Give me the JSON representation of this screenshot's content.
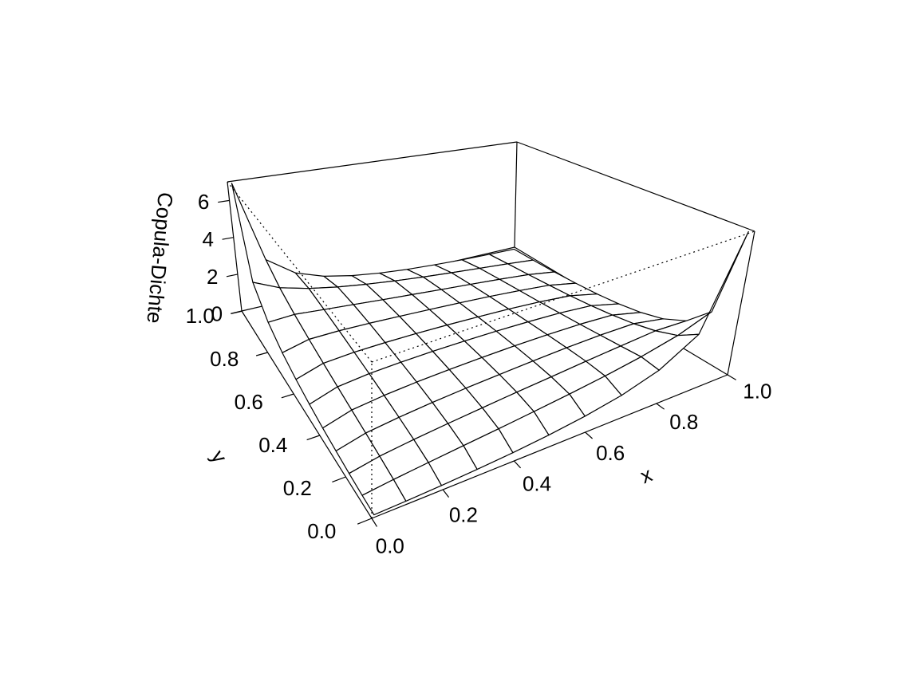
{
  "chart_data": {
    "type": "surface",
    "x": [
      0.01,
      0.1,
      0.2,
      0.3,
      0.4,
      0.5,
      0.6,
      0.7,
      0.8,
      0.9,
      0.99
    ],
    "y": [
      0.01,
      0.1,
      0.2,
      0.3,
      0.4,
      0.5,
      0.6,
      0.7,
      0.8,
      0.9,
      0.99
    ],
    "z": [
      [
        0.01,
        0.05,
        0.11,
        0.2,
        0.31,
        0.47,
        0.69,
        1.01,
        1.54,
        2.6,
        7.01
      ],
      [
        0.05,
        0.22,
        0.38,
        0.54,
        0.7,
        0.88,
        1.08,
        1.31,
        1.6,
        2.0,
        2.6
      ],
      [
        0.11,
        0.38,
        0.57,
        0.73,
        0.88,
        1.03,
        1.17,
        1.32,
        1.46,
        1.6,
        1.54
      ],
      [
        0.2,
        0.54,
        0.73,
        0.88,
        1.0,
        1.1,
        1.19,
        1.27,
        1.32,
        1.31,
        1.01
      ],
      [
        0.31,
        0.7,
        0.88,
        1.0,
        1.08,
        1.14,
        1.18,
        1.19,
        1.17,
        1.08,
        0.69
      ],
      [
        0.47,
        0.88,
        1.03,
        1.1,
        1.14,
        1.15,
        1.14,
        1.1,
        1.03,
        0.88,
        0.47
      ],
      [
        0.69,
        1.08,
        1.17,
        1.19,
        1.18,
        1.14,
        1.08,
        1.0,
        0.88,
        0.7,
        0.31
      ],
      [
        1.01,
        1.31,
        1.32,
        1.27,
        1.19,
        1.1,
        1.0,
        0.88,
        0.73,
        0.54,
        0.2
      ],
      [
        1.54,
        1.6,
        1.46,
        1.32,
        1.17,
        1.03,
        0.88,
        0.73,
        0.57,
        0.38,
        0.11
      ],
      [
        2.6,
        2.0,
        1.6,
        1.31,
        1.08,
        0.88,
        0.7,
        0.54,
        0.38,
        0.22,
        0.05
      ],
      [
        7.01,
        2.6,
        1.54,
        1.01,
        0.69,
        0.47,
        0.31,
        0.2,
        0.11,
        0.05,
        0.01
      ]
    ],
    "xlabel": "x",
    "ylabel": "y",
    "zlabel": "Copula-Dichte",
    "xlim": [
      0,
      1
    ],
    "ylim": [
      0,
      1
    ],
    "zlim": [
      0.01,
      7.01
    ],
    "xticks": [
      {
        "value": 0,
        "label": "0.0"
      },
      0.2,
      0.4,
      0.6,
      0.8,
      {
        "value": 1,
        "label": "1.0"
      }
    ],
    "yticks": [
      {
        "value": 0,
        "label": "0.0"
      },
      0.2,
      0.4,
      0.6,
      0.8,
      {
        "value": 1,
        "label": "1.0"
      }
    ],
    "zticks": [
      0,
      2,
      4,
      6
    ],
    "color": "#ffffff",
    "line_color": "#000000"
  }
}
